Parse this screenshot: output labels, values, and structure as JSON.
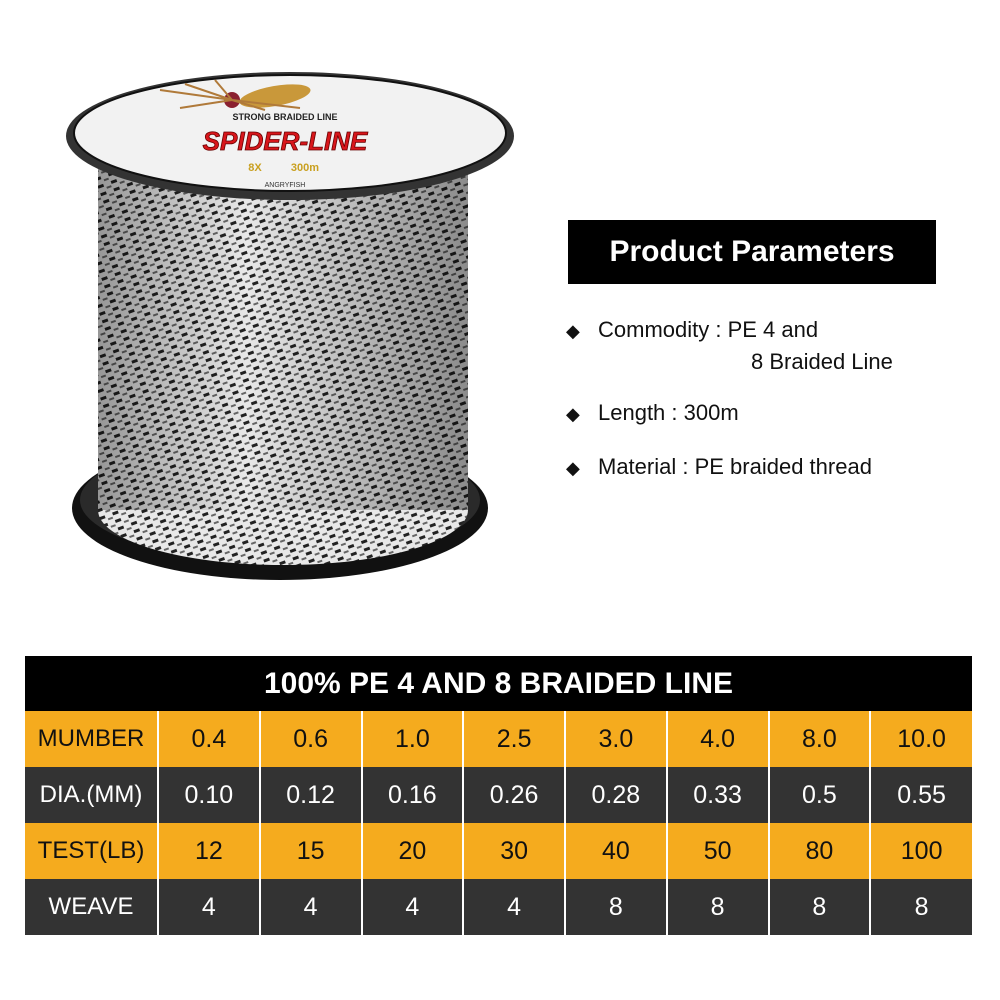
{
  "spool_label": {
    "tagline": "STRONG BRAIDED LINE",
    "brand_line": "SPIDER-LINE",
    "weave": "8X",
    "length": "300m",
    "maker": "ANGRYFISH"
  },
  "parameters": {
    "title": "Product Parameters",
    "items": [
      {
        "label": "Commodity : PE 4 and",
        "continuation": "8 Braided Line"
      },
      {
        "label": "Length : 300m"
      },
      {
        "label": "Material : PE braided thread"
      }
    ],
    "bullet_icon": "diamond"
  },
  "table": {
    "title": "100% PE 4 AND 8 BRAIDED LINE",
    "rows": [
      {
        "label": "MUMBER",
        "values": [
          "0.4",
          "0.6",
          "1.0",
          "2.5",
          "3.0",
          "4.0",
          "8.0",
          "10.0"
        ]
      },
      {
        "label": "DIA.(MM)",
        "values": [
          "0.10",
          "0.12",
          "0.16",
          "0.26",
          "0.28",
          "0.33",
          "0.5",
          "0.55"
        ]
      },
      {
        "label": "TEST(LB)",
        "values": [
          "12",
          "15",
          "20",
          "30",
          "40",
          "50",
          "80",
          "100"
        ]
      },
      {
        "label": "WEAVE",
        "values": [
          "4",
          "4",
          "4",
          "4",
          "8",
          "8",
          "8",
          "8"
        ]
      }
    ]
  },
  "colors": {
    "accent": "#f5ab1e",
    "dark_row": "#333333",
    "header": "#000000",
    "brand_red": "#d8161b"
  }
}
